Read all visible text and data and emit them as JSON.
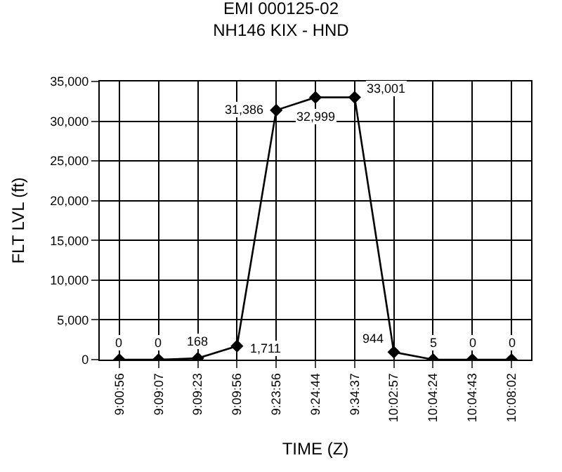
{
  "chart_data": {
    "type": "line",
    "title": "EMI 000125-02\nNH146 KIX - HND",
    "xlabel": "TIME (Z)",
    "ylabel": "FLT LVL (ft)",
    "categories": [
      "9:00:56",
      "9:09:07",
      "9:09:23",
      "9:09:56",
      "9:23:56",
      "9:24:44",
      "9:34:37",
      "10:02:57",
      "10:04:24",
      "10:04:43",
      "10:08:02"
    ],
    "series": [
      {
        "color": "#000000",
        "values": [
          0,
          0,
          168,
          1711,
          31386,
          32999,
          33001,
          944,
          5,
          0,
          0
        ]
      }
    ],
    "ylim": [
      0,
      35000
    ],
    "yticks": [
      {
        "value": 0,
        "label": "0"
      },
      {
        "value": 5000,
        "label": "5,000"
      },
      {
        "value": 10000,
        "label": "10,000"
      },
      {
        "value": 15000,
        "label": "15,000"
      },
      {
        "value": 20000,
        "label": "20,000"
      },
      {
        "value": 25000,
        "label": "25,000"
      },
      {
        "value": 30000,
        "label": "30,000"
      },
      {
        "value": 35000,
        "label": "35,000"
      }
    ],
    "value_labels": [
      "0",
      "0",
      "168",
      "1,711",
      "31,386",
      "32,999",
      "33,001",
      "944",
      "5",
      "0",
      "0"
    ],
    "grid": true,
    "marker": "diamond",
    "line_style": "solid"
  }
}
